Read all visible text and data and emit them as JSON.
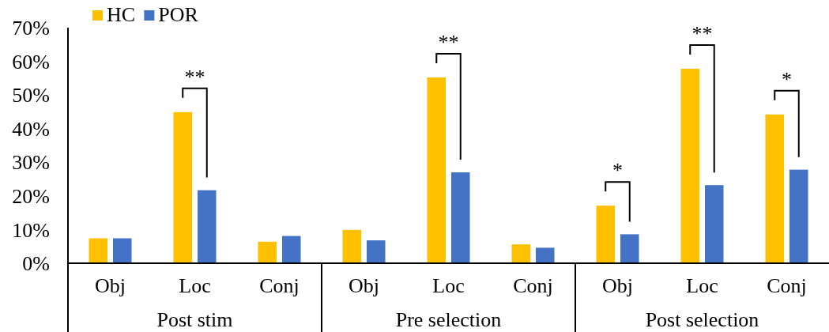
{
  "chart_data": [
    {
      "type": "bar",
      "categories": [
        "Obj",
        "Loc",
        "Conj"
      ],
      "xlabel": "Post stim",
      "series": [
        {
          "name": "HC",
          "color": "#ffc000",
          "values": [
            7.4,
            44.9,
            6.4
          ]
        },
        {
          "name": "POR",
          "color": "#4472c4",
          "values": [
            7.4,
            21.7,
            8.1
          ]
        }
      ],
      "ylim": [
        0,
        70
      ],
      "yticks": [
        {
          "value": 0,
          "label": "0%"
        },
        {
          "value": 10,
          "label": "10%"
        },
        {
          "value": 20,
          "label": "20%"
        },
        {
          "value": 30,
          "label": "30%"
        },
        {
          "value": 40,
          "label": "40%"
        },
        {
          "value": 50,
          "label": "50%"
        },
        {
          "value": 60,
          "label": "60%"
        },
        {
          "value": 70,
          "label": "70%"
        }
      ],
      "legend": "top left",
      "annotations": [
        {
          "text": "**",
          "x": "Loc",
          "y": 44.9
        }
      ]
    },
    {
      "type": "bar",
      "categories": [
        "Obj",
        "Loc",
        "Conj"
      ],
      "xlabel": "Pre selection",
      "series": [
        {
          "color": "#ffc000",
          "values": [
            9.9,
            55.2,
            5.6
          ]
        },
        {
          "color": "#4472c4",
          "values": [
            6.8,
            27.0,
            4.6
          ]
        }
      ],
      "ylim": [
        0,
        70
      ],
      "tick_labels": "x",
      "annotations": [
        {
          "text": "**",
          "x": "Loc",
          "y": 55.2
        }
      ]
    },
    {
      "type": "bar",
      "categories": [
        "Obj",
        "Loc",
        "Conj"
      ],
      "xlabel": "Post selection",
      "series": [
        {
          "color": "#ffc000",
          "values": [
            17.1,
            57.8,
            44.2
          ]
        },
        {
          "color": "#4472c4",
          "values": [
            8.6,
            23.2,
            27.8
          ]
        }
      ],
      "ylim": [
        0,
        70
      ],
      "tick_labels": "x",
      "annotations": [
        {
          "text": "*",
          "x": "Obj",
          "y": 17.1
        },
        {
          "text": "**",
          "x": "Loc",
          "y": 57.8
        },
        {
          "text": "*",
          "x": "Conj",
          "y": 44.2
        }
      ]
    }
  ]
}
